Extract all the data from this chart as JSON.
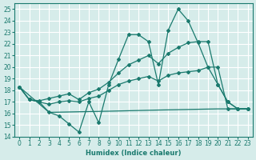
{
  "xlabel": "Humidex (Indice chaleur)",
  "ylabel": "",
  "bg_color": "#d6ecea",
  "grid_color": "#ffffff",
  "line_color": "#1a7a6e",
  "xlim": [
    -0.5,
    23.5
  ],
  "ylim": [
    14,
    25.5
  ],
  "yticks": [
    14,
    15,
    16,
    17,
    18,
    19,
    20,
    21,
    22,
    23,
    24,
    25
  ],
  "xticks": [
    0,
    1,
    2,
    3,
    4,
    5,
    6,
    7,
    8,
    9,
    10,
    11,
    12,
    13,
    14,
    15,
    16,
    17,
    18,
    19,
    20,
    21,
    22,
    23
  ],
  "line_zigzag_x": [
    0,
    1,
    2,
    3,
    4,
    5,
    6,
    7,
    8,
    9,
    10,
    11,
    12,
    13,
    14,
    15,
    16,
    17,
    18,
    19,
    20,
    21,
    22,
    23
  ],
  "line_zigzag_y": [
    18.3,
    17.2,
    17.0,
    16.1,
    15.8,
    15.1,
    14.4,
    17.0,
    15.2,
    18.5,
    20.7,
    22.8,
    22.8,
    22.2,
    18.5,
    23.2,
    25.0,
    24.0,
    22.1,
    20.0,
    18.5,
    17.0,
    16.4,
    16.4
  ],
  "line_flat_x": [
    0,
    3,
    9,
    14,
    20,
    23
  ],
  "line_flat_y": [
    18.3,
    16.1,
    16.2,
    16.3,
    16.4,
    16.4
  ],
  "line_lower_x": [
    0,
    1,
    2,
    3,
    4,
    5,
    6,
    7,
    8,
    9,
    10,
    11,
    12,
    13,
    14,
    15,
    16,
    17,
    18,
    19,
    20,
    21,
    22,
    23
  ],
  "line_lower_y": [
    18.3,
    17.2,
    17.0,
    16.8,
    17.0,
    17.1,
    17.0,
    17.3,
    17.5,
    18.0,
    18.5,
    18.8,
    19.0,
    19.2,
    18.8,
    19.3,
    19.5,
    19.6,
    19.7,
    20.0,
    20.0,
    16.4,
    16.4,
    16.4
  ],
  "line_upper_x": [
    0,
    1,
    2,
    3,
    4,
    5,
    6,
    7,
    8,
    9,
    10,
    11,
    12,
    13,
    14,
    15,
    16,
    17,
    18,
    19,
    20,
    21,
    22,
    23
  ],
  "line_upper_y": [
    18.3,
    17.2,
    17.1,
    17.3,
    17.5,
    17.7,
    17.2,
    17.8,
    18.1,
    18.7,
    19.5,
    20.2,
    20.6,
    21.0,
    20.3,
    21.2,
    21.7,
    22.1,
    22.2,
    22.2,
    18.5,
    17.0,
    16.4,
    16.4
  ]
}
